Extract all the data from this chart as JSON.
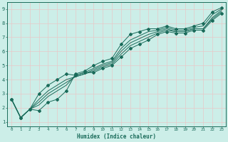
{
  "xlabel": "Humidex (Indice chaleur)",
  "background_color": "#cceee8",
  "grid_color": "#e8c8c8",
  "line_color": "#1a6b5a",
  "xlim": [
    -0.5,
    23.5
  ],
  "ylim": [
    0.7,
    9.5
  ],
  "xticks": [
    0,
    1,
    2,
    3,
    4,
    5,
    6,
    7,
    8,
    9,
    10,
    11,
    12,
    13,
    14,
    15,
    16,
    17,
    18,
    19,
    20,
    21,
    22,
    23
  ],
  "yticks": [
    1,
    2,
    3,
    4,
    5,
    6,
    7,
    8,
    9
  ],
  "lines": [
    {
      "x": [
        0,
        1,
        2,
        3,
        4,
        5,
        6,
        7,
        8,
        9,
        10,
        11,
        12,
        13,
        14,
        15,
        16,
        17,
        18,
        19,
        20,
        21,
        22,
        23
      ],
      "y": [
        2.6,
        1.3,
        1.9,
        1.8,
        2.4,
        2.6,
        3.2,
        4.4,
        4.6,
        5.0,
        5.3,
        5.5,
        6.5,
        7.2,
        7.4,
        7.6,
        7.6,
        7.8,
        7.6,
        7.6,
        7.8,
        8.0,
        8.8,
        9.1
      ],
      "marker": true
    },
    {
      "x": [
        0,
        1,
        2,
        3,
        4,
        5,
        6,
        7,
        8,
        9,
        10,
        11,
        12,
        13,
        14,
        15,
        16,
        17,
        18,
        19,
        20,
        21,
        22,
        23
      ],
      "y": [
        2.6,
        1.3,
        1.9,
        2.2,
        2.8,
        3.2,
        3.6,
        4.3,
        4.5,
        4.8,
        5.1,
        5.3,
        6.2,
        6.8,
        7.1,
        7.4,
        7.5,
        7.7,
        7.5,
        7.5,
        7.7,
        7.8,
        8.6,
        9.0
      ],
      "marker": false
    },
    {
      "x": [
        0,
        1,
        2,
        3,
        4,
        5,
        6,
        7,
        8,
        9,
        10,
        11,
        12,
        13,
        14,
        15,
        16,
        17,
        18,
        19,
        20,
        21,
        22,
        23
      ],
      "y": [
        2.6,
        1.3,
        1.9,
        2.4,
        3.0,
        3.4,
        3.8,
        4.2,
        4.4,
        4.7,
        5.0,
        5.2,
        6.0,
        6.6,
        6.9,
        7.2,
        7.4,
        7.6,
        7.4,
        7.4,
        7.6,
        7.6,
        8.4,
        8.9
      ],
      "marker": false
    },
    {
      "x": [
        0,
        1,
        2,
        3,
        4,
        5,
        6,
        7,
        8,
        9,
        10,
        11,
        12,
        13,
        14,
        15,
        16,
        17,
        18,
        19,
        20,
        21,
        22,
        23
      ],
      "y": [
        2.6,
        1.3,
        1.9,
        2.6,
        3.2,
        3.6,
        4.0,
        4.2,
        4.4,
        4.6,
        4.9,
        5.1,
        5.8,
        6.4,
        6.7,
        7.0,
        7.3,
        7.5,
        7.4,
        7.4,
        7.6,
        7.6,
        8.3,
        8.8
      ],
      "marker": false
    },
    {
      "x": [
        0,
        1,
        2,
        3,
        4,
        5,
        6,
        7,
        8,
        9,
        10,
        11,
        12,
        13,
        14,
        15,
        16,
        17,
        18,
        19,
        20,
        21,
        22,
        23
      ],
      "y": [
        2.6,
        1.3,
        1.9,
        3.0,
        3.6,
        4.0,
        4.4,
        4.3,
        4.5,
        4.5,
        4.8,
        5.0,
        5.6,
        6.2,
        6.5,
        6.8,
        7.2,
        7.4,
        7.3,
        7.3,
        7.5,
        7.5,
        8.2,
        8.7
      ],
      "marker": true
    }
  ]
}
